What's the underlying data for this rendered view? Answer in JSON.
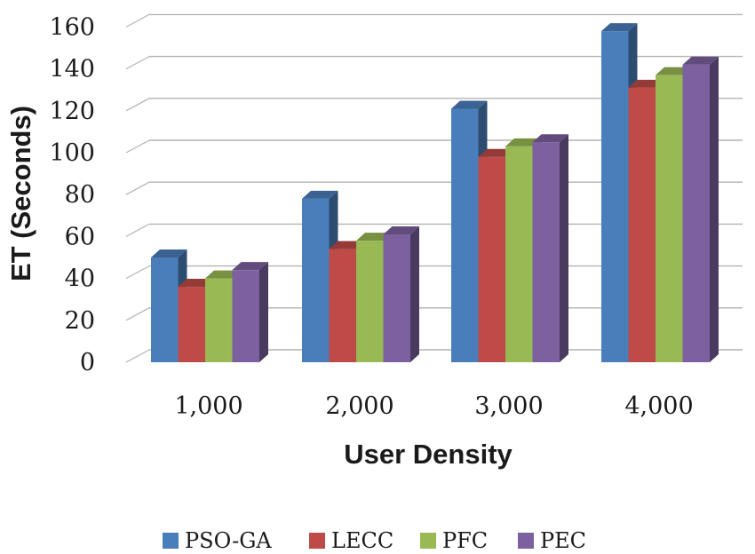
{
  "chart_data": {
    "type": "bar",
    "style": "3d-clustered-column",
    "categories": [
      "1,000",
      "2,000",
      "3,000",
      "4,000"
    ],
    "series": [
      {
        "name": "PSO-GA",
        "values": [
          50,
          78,
          121,
          158
        ],
        "color": "#4A7EBB"
      },
      {
        "name": "LECC",
        "values": [
          36,
          54,
          98,
          131
        ],
        "color": "#BE4B48"
      },
      {
        "name": "PFC",
        "values": [
          40,
          58,
          103,
          137
        ],
        "color": "#98B954"
      },
      {
        "name": "PEC",
        "values": [
          44,
          61,
          105,
          142
        ],
        "color": "#7D60A0"
      }
    ],
    "xlabel": "User Density",
    "ylabel": "ET (Seconds)",
    "ylim": [
      0,
      160
    ],
    "yticks": [
      "0",
      "20",
      "40",
      "60",
      "80",
      "100",
      "120",
      "140",
      "160"
    ],
    "grid": true,
    "legend_position": "bottom"
  }
}
